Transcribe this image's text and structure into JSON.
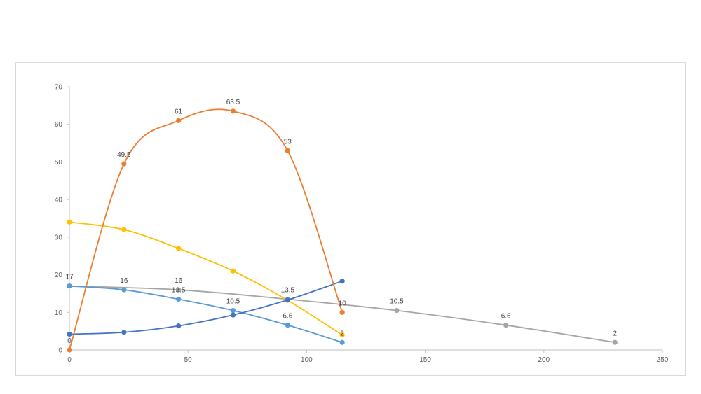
{
  "chart_data": {
    "type": "scatter",
    "title": "",
    "xlabel": "",
    "ylabel": "",
    "xlim": [
      0,
      250
    ],
    "ylim": [
      0,
      70
    ],
    "x_ticks": [
      "0",
      "50",
      "100",
      "150",
      "200",
      "250"
    ],
    "y_ticks": [
      "0",
      "10",
      "20",
      "30",
      "40",
      "50",
      "60",
      "70"
    ],
    "grid": false,
    "legend": "none",
    "series": [
      {
        "color": "#ED7D31",
        "x": [
          0,
          23,
          46,
          69,
          92,
          115
        ],
        "y": [
          0,
          49.5,
          61,
          63.5,
          53,
          10
        ],
        "labels": [
          "0",
          "49.5",
          "61",
          "63.5",
          "53",
          "10"
        ]
      },
      {
        "color": "#FFC000",
        "x": [
          0,
          23,
          46,
          69,
          92,
          115
        ],
        "y": [
          34,
          32,
          27,
          21,
          13.2,
          4
        ],
        "labels": []
      },
      {
        "color": "#5B9BD5",
        "x": [
          0,
          23,
          46,
          69,
          92,
          115
        ],
        "y": [
          17,
          16,
          13.5,
          10.5,
          6.6,
          2
        ],
        "labels": [
          "",
          "16",
          "13.5",
          "10.5",
          "6.6",
          "2"
        ]
      },
      {
        "color": "#4472C4",
        "x": [
          0,
          23,
          46,
          69,
          92,
          115
        ],
        "y": [
          4.2,
          4.7,
          6.4,
          9.3,
          13.3,
          18.3
        ],
        "labels": []
      },
      {
        "color": "#A5A5A5",
        "x": [
          0,
          46,
          92,
          138,
          184,
          230
        ],
        "y": [
          17,
          16,
          13.5,
          10.5,
          6.6,
          2
        ],
        "labels": [
          "17",
          "16",
          "13.5",
          "10.5",
          "6.6",
          "2"
        ]
      }
    ]
  }
}
